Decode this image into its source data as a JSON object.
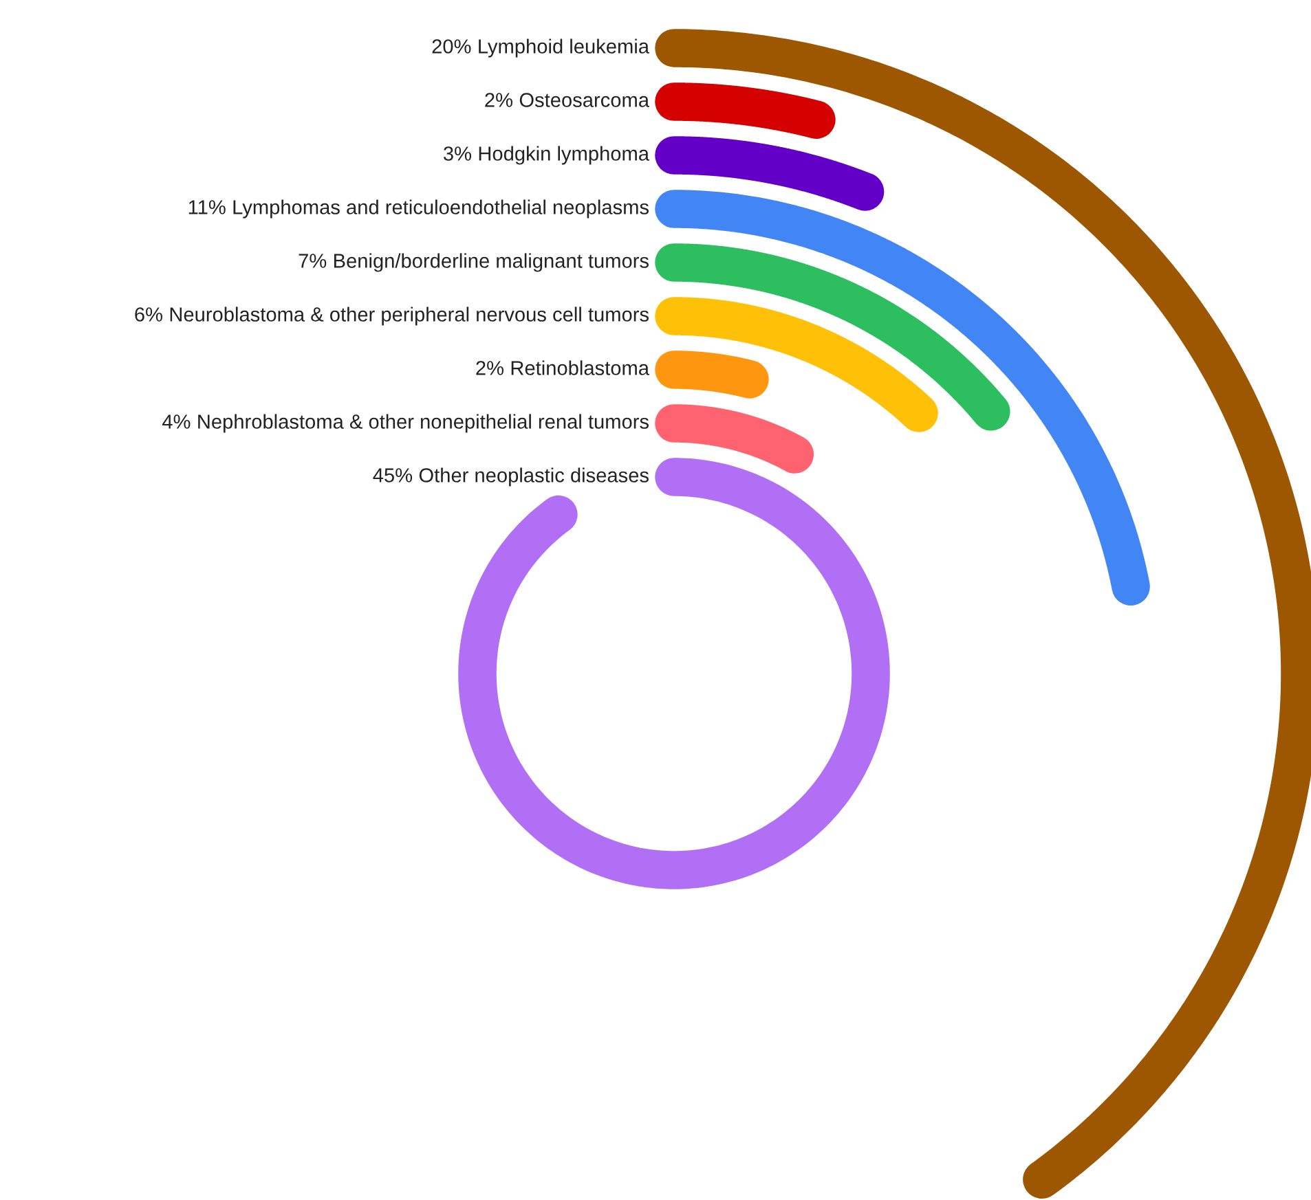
{
  "chart_data": {
    "type": "other",
    "categories": [
      "Lymphoid leukemia",
      "Osteosarcoma",
      "Hodgkin lymphoma",
      "Lymphomas and reticuloendothelial neoplasms",
      "Benign/borderline malignant tumors",
      "Neuroblastoma & other peripheral nervous cell tumors",
      "Retinoblastoma",
      "Nephroblastoma & other nonepithelial renal tumors",
      "Other neoplastic diseases"
    ],
    "values": [
      20,
      2,
      3,
      11,
      7,
      6,
      2,
      4,
      45
    ],
    "value_labels": [
      "20%",
      "2%",
      "3%",
      "11%",
      "7%",
      "6%",
      "2%",
      "4%",
      "45%"
    ],
    "colors": [
      "#9c5700",
      "#d50000",
      "#6200c8",
      "#4285f4",
      "#2dbe60",
      "#ffc107",
      "#ff9610",
      "#ff6370",
      "#b06ff5"
    ]
  }
}
